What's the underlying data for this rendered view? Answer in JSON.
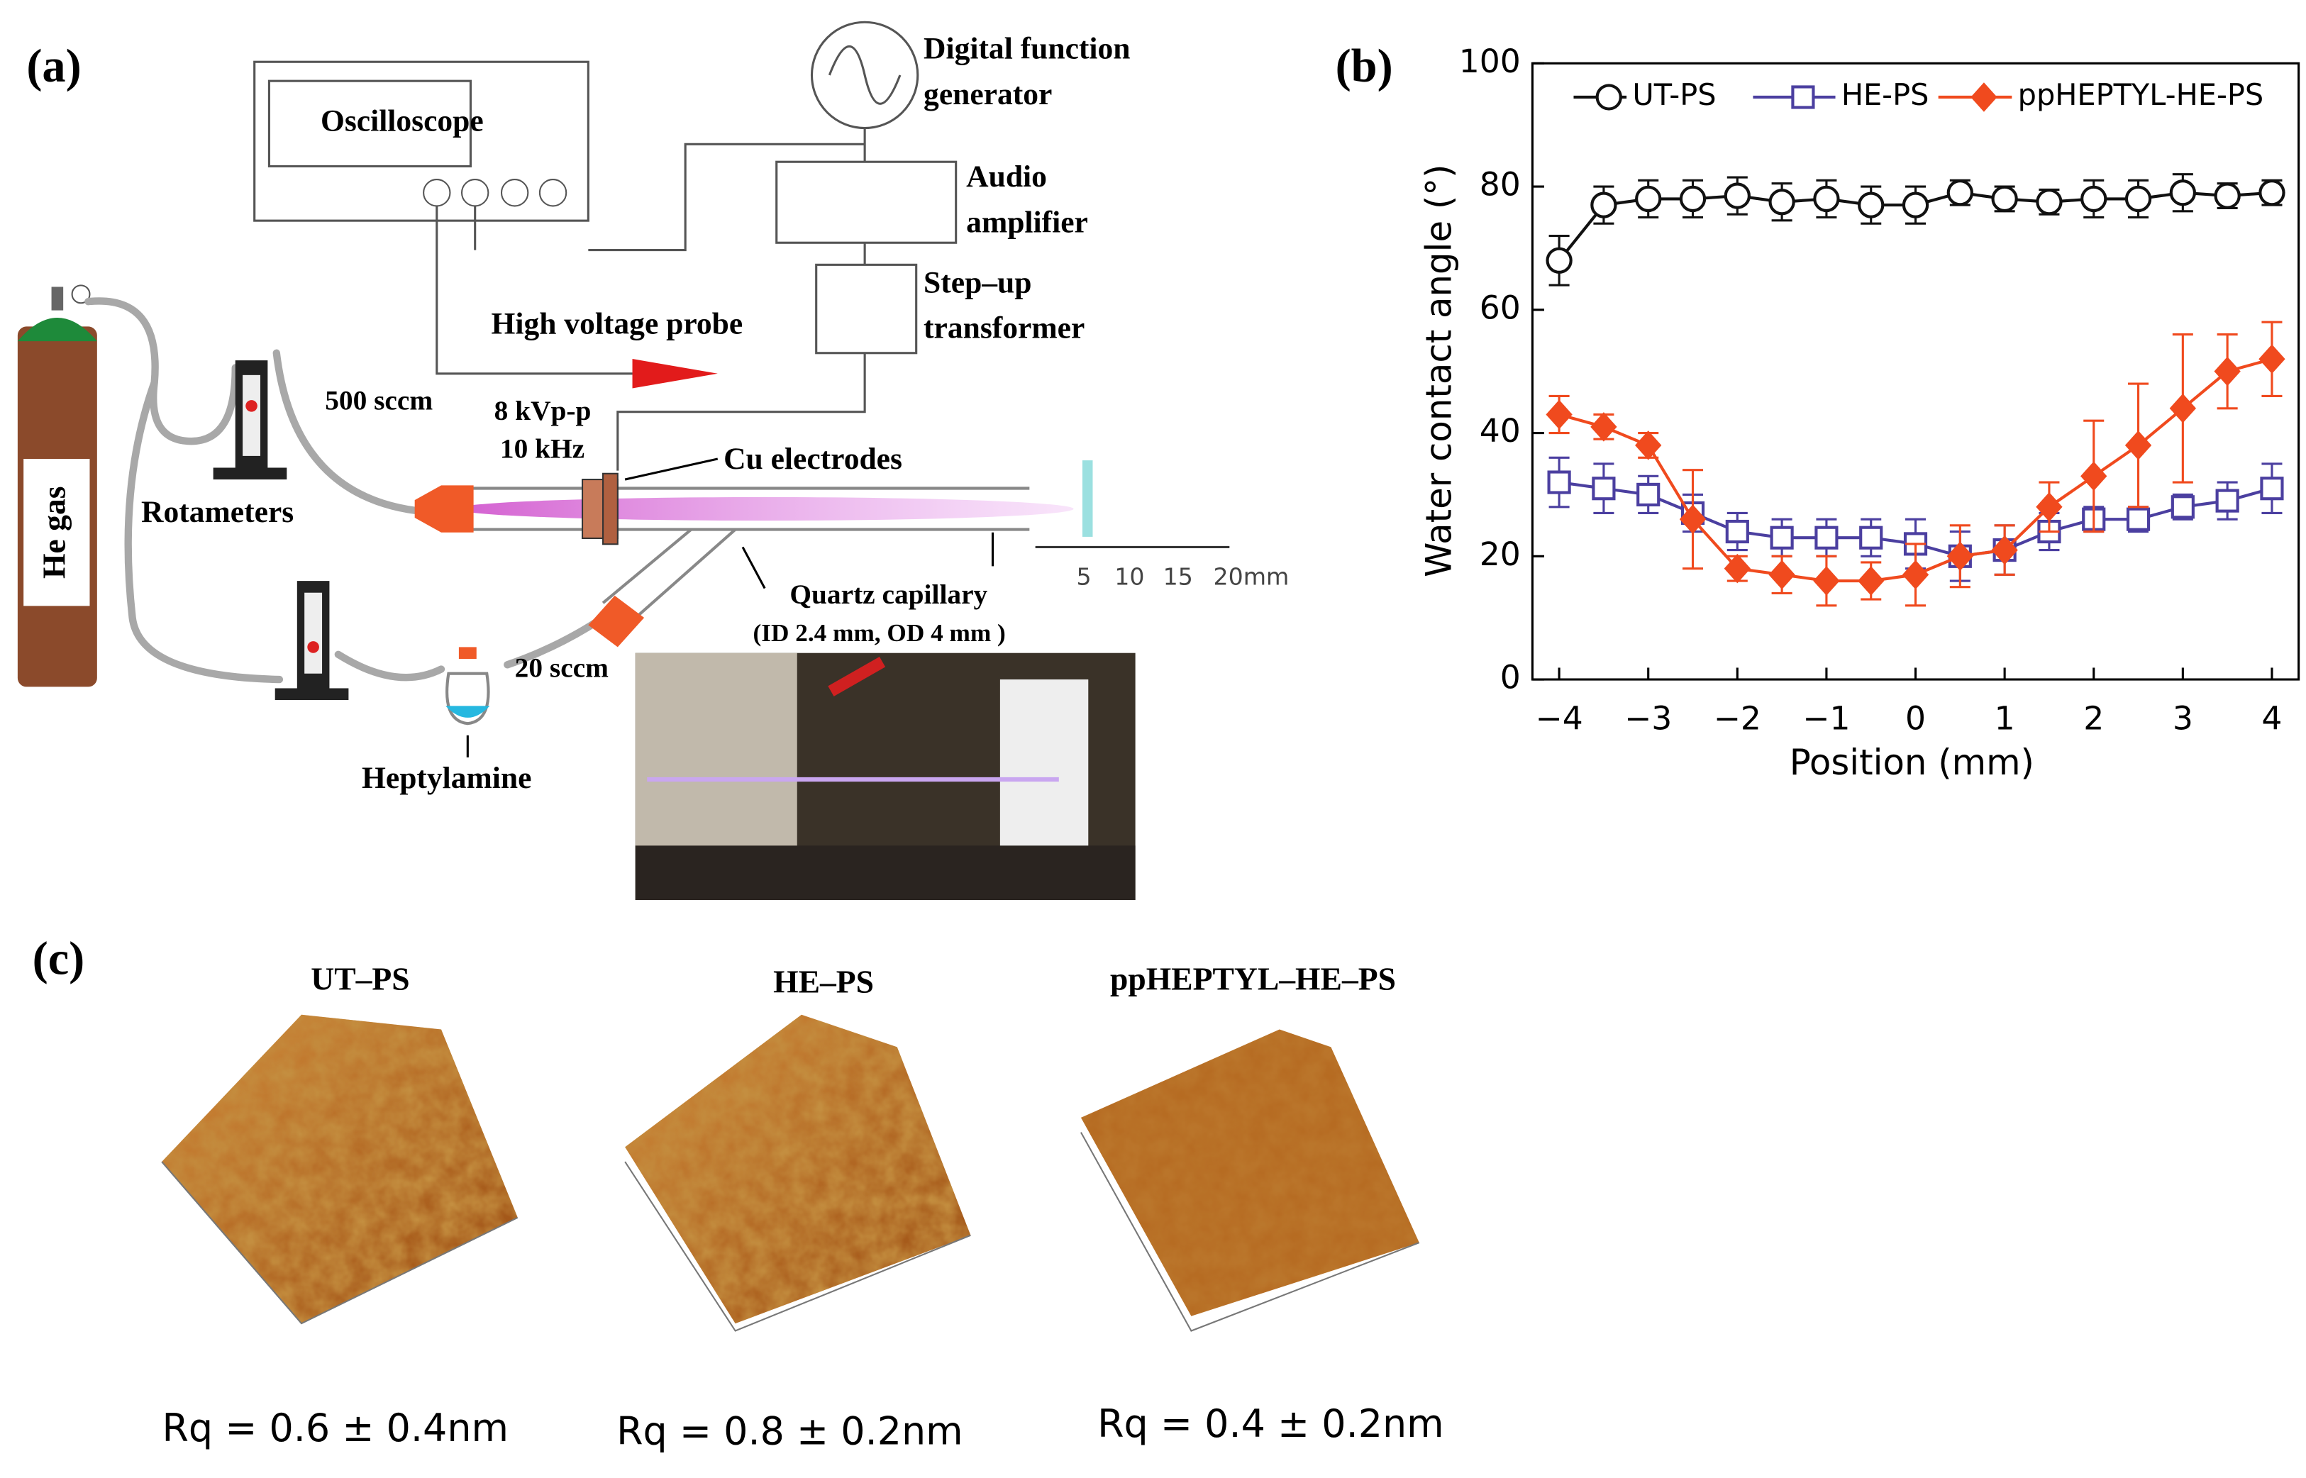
{
  "panel_a": {
    "label": "(a)",
    "oscilloscope": "Oscilloscope",
    "function_generator": [
      "Digital function",
      "generator"
    ],
    "amplifier": [
      "Audio",
      "amplifier"
    ],
    "transformer": [
      "Step–up",
      "transformer"
    ],
    "probe": "High voltage probe",
    "flow_he": "500 sccm",
    "voltage": "8 kVp-p",
    "frequency": "10 kHz",
    "electrodes": "Cu electrodes",
    "rotameters": "Rotameters",
    "gas": "He gas",
    "capillary": "Quartz capillary",
    "capillary_size": "(ID 2.4 mm, OD 4 mm )",
    "flow_monomer": "20 sccm",
    "monomer": "Heptylamine",
    "scale_labels": [
      "5",
      "10",
      "15",
      "20mm"
    ]
  },
  "chart_data": {
    "type": "line",
    "panel_label": "(b)",
    "x_label": "Position (mm)",
    "y_label": "Water contact angle (°)",
    "x": [
      -4,
      -3.5,
      -3,
      -2.5,
      -2,
      -1.5,
      -1,
      -0.5,
      0,
      0.5,
      1,
      1.5,
      2,
      2.5,
      3,
      3.5,
      4
    ],
    "xlim": [
      -4.3,
      4.3
    ],
    "xticks": [
      {
        "value": -4,
        "label": "−4"
      },
      {
        "value": -3,
        "label": "−3"
      },
      {
        "value": -2,
        "label": "−2"
      },
      {
        "value": -1,
        "label": "−1"
      },
      0,
      1,
      2,
      3,
      4
    ],
    "ylim": [
      0,
      100
    ],
    "yticks": [
      0,
      20,
      40,
      60,
      80,
      100
    ],
    "legend": "top",
    "series": [
      {
        "name": "UT-PS",
        "color": "#111111",
        "marker": "circle",
        "values": [
          68,
          77,
          78,
          78,
          78.5,
          77.5,
          78,
          77,
          77,
          79,
          78,
          77.5,
          78,
          78,
          79,
          78.5,
          79
        ],
        "errors": [
          4,
          3,
          3,
          3,
          3,
          3,
          3,
          3,
          3,
          2,
          2,
          2,
          3,
          3,
          3,
          2,
          2
        ]
      },
      {
        "name": "HE-PS",
        "color": "#4b3fa0",
        "marker": "square",
        "values": [
          32,
          31,
          30,
          27,
          24,
          23,
          23,
          23,
          22,
          20,
          21,
          24,
          26,
          26,
          28,
          29,
          31
        ],
        "errors": [
          4,
          4,
          3,
          3,
          3,
          3,
          3,
          3,
          4,
          4,
          4,
          3,
          2,
          2,
          2,
          3,
          4
        ]
      },
      {
        "name": "ppHEPTYL-HE-PS",
        "color": "#f04a1e",
        "marker": "diamond",
        "values": [
          43,
          41,
          38,
          26,
          18,
          17,
          16,
          16,
          17,
          20,
          21,
          28,
          33,
          38,
          44,
          50,
          52
        ],
        "errors": [
          3,
          2,
          2,
          8,
          2,
          3,
          4,
          3,
          5,
          5,
          4,
          4,
          9,
          10,
          12,
          6,
          6
        ]
      }
    ]
  },
  "panel_c": {
    "label": "(c)",
    "samples": [
      {
        "name": "UT–PS",
        "roughness": "Rq = 0.6 ± 0.4nm"
      },
      {
        "name": "HE–PS",
        "roughness": "Rq = 0.8 ± 0.2nm"
      },
      {
        "name": "ppHEPTYL–HE–PS",
        "roughness": "Rq = 0.4 ± 0.2nm"
      }
    ]
  }
}
